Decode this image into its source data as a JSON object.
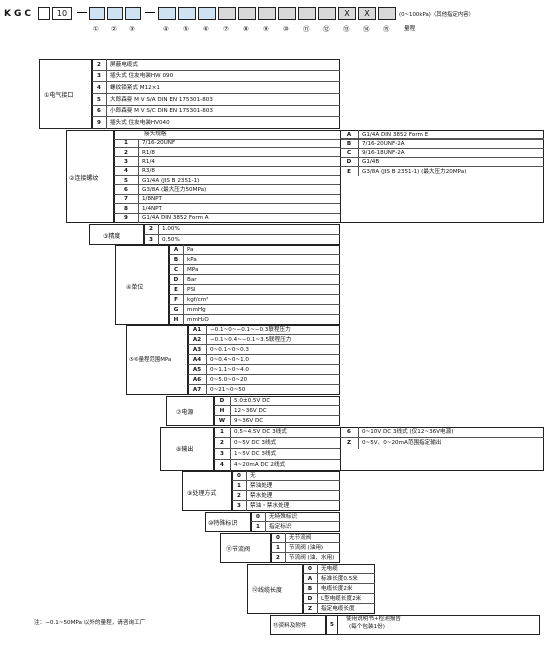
{
  "header": {
    "prefix": "KGC",
    "num": "10",
    "x1": "X",
    "x2": "X",
    "note": "(0~100kPa)（其他指定内容）",
    "range_label": "量程",
    "circles": [
      "①",
      "②",
      "③",
      "④",
      "⑤",
      "⑥",
      "⑦",
      "⑧",
      "⑨",
      "⑩",
      "⑪",
      "⑫",
      "⑬",
      "⑭",
      "⑮"
    ]
  },
  "sections": {
    "s1": {
      "label": "①电气接口",
      "rows": [
        [
          "2",
          "屏蔽电缆式"
        ],
        [
          "3",
          "插头式 住友电装HW 090"
        ],
        [
          "4",
          "螺纹锁紧式 M12×1"
        ],
        [
          "5",
          "大郎森曼 M V S/A DIN EN 175301-803"
        ],
        [
          "6",
          "小郎森曼 M V S/C DIN EN 175301-803"
        ],
        [
          "9",
          "插头式 住友电装HV040"
        ]
      ]
    },
    "s2": {
      "label": "②连接螺纹",
      "head": "接头规格",
      "left": [
        [
          "1",
          "7/16-20UNF"
        ],
        [
          "2",
          "R1/8"
        ],
        [
          "3",
          "R1/4"
        ],
        [
          "4",
          "R3/8"
        ],
        [
          "5",
          "G1/4A  (JIS B 2351-1)"
        ],
        [
          "6",
          "G3/8A  (最大压力50MPa)"
        ],
        [
          "7",
          "1/8NPT"
        ],
        [
          "8",
          "1/4NPT"
        ],
        [
          "9",
          "G1/4A DIN 3852 Form A"
        ]
      ],
      "right": [
        [
          "A",
          "G1/4A DIN 3852 Form E"
        ],
        [
          "B",
          "7/16-20UNF-2A"
        ],
        [
          "C",
          "9/16-18UNF-2A"
        ],
        [
          "D",
          "G1/4B"
        ],
        [
          "E",
          "G3/8A  (JIS B 2351-1)  (最大压力20MPa)"
        ]
      ]
    },
    "s3": {
      "label": "③精度",
      "rows": [
        [
          "2",
          "1.00%"
        ],
        [
          "3",
          "0.50%"
        ]
      ]
    },
    "s4": {
      "label": "④单位",
      "rows": [
        [
          "A",
          "Pa"
        ],
        [
          "B",
          "kPa"
        ],
        [
          "C",
          "MPa"
        ],
        [
          "D",
          "Bar"
        ],
        [
          "E",
          "PSI"
        ],
        [
          "F",
          "kgf/cm²"
        ],
        [
          "G",
          "mmHg"
        ],
        [
          "H",
          "mmH₂O"
        ]
      ]
    },
    "s5": {
      "label": "⑤⑥量程范围MPa",
      "rows": [
        [
          "A1",
          "−0.1~0~−0.1~−0.3联程压力"
        ],
        [
          "A2",
          "−0.1~0.4~−0.1~3.5联程压力"
        ],
        [
          "A3",
          "0~0.1~0~0.3"
        ],
        [
          "A4",
          "0~0.4~0~1.0"
        ],
        [
          "A5",
          "0~1.1~0~4.0"
        ],
        [
          "A6",
          "0~5.0~0~20"
        ],
        [
          "A7",
          "0~21~0~50"
        ]
      ]
    },
    "s7": {
      "label": "⑦电源",
      "rows": [
        [
          "D",
          "5.0±0.5V DC"
        ],
        [
          "H",
          "12~36V DC"
        ],
        [
          "W",
          "9~36V DC"
        ]
      ]
    },
    "s8": {
      "label": "⑧输出",
      "left": [
        [
          "1",
          "0.5~4.5V DC 3线式"
        ],
        [
          "2",
          "0~5V DC 3线式"
        ],
        [
          "3",
          "1~5V DC 3线式"
        ],
        [
          "4",
          "4~20mA DC 2线式"
        ]
      ],
      "right": [
        [
          "6",
          "0~10V DC 3线式 (仅12~36V电源)"
        ],
        [
          "Z",
          "0~5V、0~20mA范围指定输出"
        ]
      ]
    },
    "s9": {
      "label": "⑨处理方式",
      "rows": [
        [
          "0",
          "无"
        ],
        [
          "1",
          "禁油处理"
        ],
        [
          "2",
          "禁水处理"
        ],
        [
          "3",
          "禁油・禁水处理"
        ]
      ]
    },
    "s10": {
      "label": "⑩特殊标识",
      "rows": [
        [
          "0",
          "无特殊标识"
        ],
        [
          "1",
          "指定标识"
        ]
      ]
    },
    "s11": {
      "label": "⑪节流阀",
      "rows": [
        [
          "0",
          "无节流阀"
        ],
        [
          "1",
          "节流阀 (油用)"
        ],
        [
          "2",
          "节流阀 (油、水用)"
        ]
      ]
    },
    "s12": {
      "label": "⑫线缆长度",
      "rows": [
        [
          "0",
          "无电缆"
        ],
        [
          "A",
          "标准长度0.5米"
        ],
        [
          "B",
          "电缆长度2米"
        ],
        [
          "D",
          "L型电缆长度2米"
        ],
        [
          "Z",
          "指定电缆长度"
        ]
      ]
    },
    "s15": {
      "label": "⑮资料及附件",
      "code": "5",
      "text1": "使用说明书+检测报告",
      "text2": "(每个包装1份)"
    }
  },
  "footnote": "注：−0.1~50MPa 以外的量程，请咨询工厂"
}
